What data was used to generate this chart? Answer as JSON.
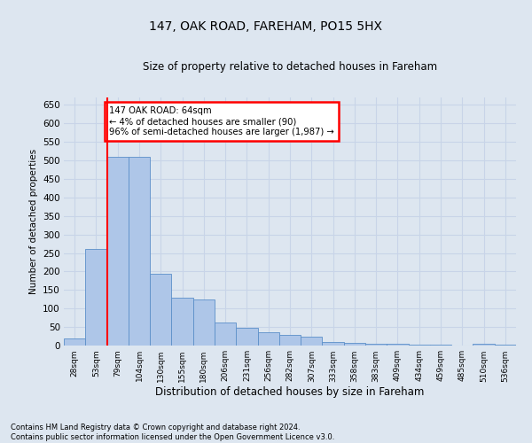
{
  "title1": "147, OAK ROAD, FAREHAM, PO15 5HX",
  "title2": "Size of property relative to detached houses in Fareham",
  "xlabel": "Distribution of detached houses by size in Fareham",
  "ylabel": "Number of detached properties",
  "categories": [
    "28sqm",
    "53sqm",
    "79sqm",
    "104sqm",
    "130sqm",
    "155sqm",
    "180sqm",
    "206sqm",
    "231sqm",
    "256sqm",
    "282sqm",
    "307sqm",
    "333sqm",
    "358sqm",
    "383sqm",
    "409sqm",
    "434sqm",
    "459sqm",
    "485sqm",
    "510sqm",
    "536sqm"
  ],
  "values": [
    18,
    262,
    510,
    510,
    193,
    130,
    125,
    62,
    48,
    35,
    28,
    25,
    10,
    8,
    5,
    5,
    2,
    2,
    0,
    5,
    2
  ],
  "bar_color": "#aec6e8",
  "bar_edge_color": "#5b8fc9",
  "vline_x": 1.5,
  "vline_color": "red",
  "annotation_text": "147 OAK ROAD: 64sqm\n← 4% of detached houses are smaller (90)\n96% of semi-detached houses are larger (1,987) →",
  "annotation_box_color": "white",
  "annotation_box_edge_color": "red",
  "ylim": [
    0,
    670
  ],
  "yticks": [
    0,
    50,
    100,
    150,
    200,
    250,
    300,
    350,
    400,
    450,
    500,
    550,
    600,
    650
  ],
  "grid_color": "#c8d4e8",
  "footnote": "Contains HM Land Registry data © Crown copyright and database right 2024.\nContains public sector information licensed under the Open Government Licence v3.0.",
  "bg_color": "#dde6f0"
}
